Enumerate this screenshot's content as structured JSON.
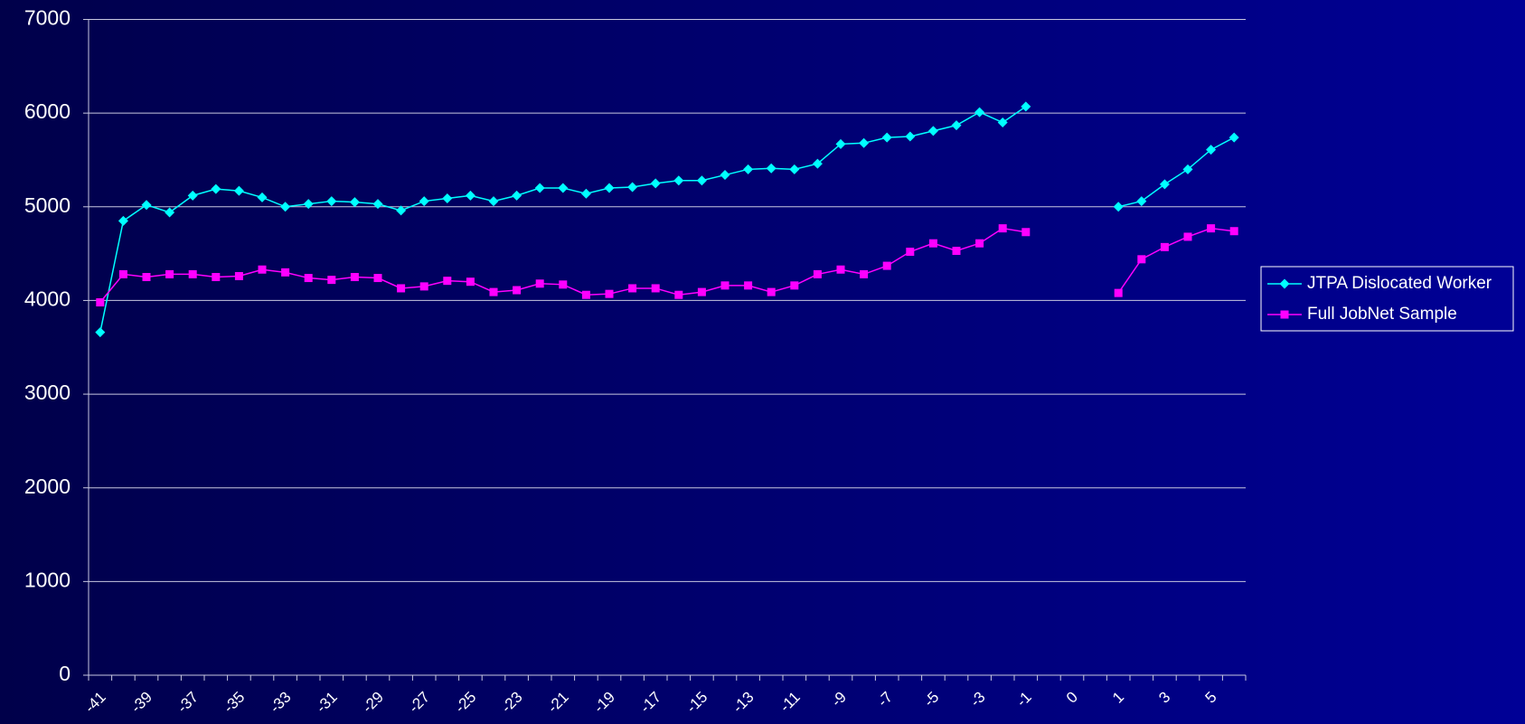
{
  "chart_data": {
    "type": "line",
    "categories": [
      "-41",
      null,
      "-39",
      null,
      "-37",
      null,
      "-35",
      null,
      "-33",
      null,
      "-31",
      null,
      "-29",
      null,
      "-27",
      null,
      "-25",
      null,
      "-23",
      null,
      "-21",
      null,
      "-19",
      null,
      "-17",
      null,
      "-15",
      null,
      "-13",
      null,
      "-11",
      null,
      "-9",
      null,
      "-7",
      null,
      "-5",
      null,
      "-3",
      null,
      "-1",
      null,
      "0",
      null,
      "1",
      null,
      "3",
      null,
      "5",
      null
    ],
    "series": [
      {
        "name": "JTPA Dislocated Worker",
        "color": "#00ffff",
        "marker": "diamond",
        "values": [
          3660,
          4850,
          5020,
          4940,
          5120,
          5190,
          5170,
          5100,
          5000,
          5030,
          5060,
          5050,
          5030,
          4960,
          5060,
          5090,
          5120,
          5060,
          5120,
          5200,
          5200,
          5140,
          5200,
          5210,
          5250,
          5280,
          5280,
          5340,
          5400,
          5410,
          5400,
          5460,
          5670,
          5680,
          5740,
          5750,
          5810,
          5870,
          6010,
          5900,
          6070,
          null,
          null,
          null,
          5000,
          5060,
          5240,
          5400,
          5610,
          5740
        ]
      },
      {
        "name": "Full JobNet Sample",
        "color": "#ff00ff",
        "marker": "square",
        "values": [
          3980,
          4280,
          4250,
          4280,
          4280,
          4250,
          4260,
          4330,
          4300,
          4240,
          4220,
          4250,
          4240,
          4130,
          4150,
          4210,
          4200,
          4090,
          4110,
          4180,
          4170,
          4060,
          4070,
          4130,
          4130,
          4060,
          4090,
          4160,
          4160,
          4090,
          4160,
          4280,
          4330,
          4280,
          4370,
          4520,
          4610,
          4530,
          4610,
          4770,
          4730,
          null,
          null,
          null,
          4080,
          4440,
          4570,
          4680,
          4770,
          4740
        ]
      }
    ],
    "ylim": [
      0,
      7000
    ],
    "yticks": [
      0,
      1000,
      2000,
      3000,
      4000,
      5000,
      6000,
      7000
    ],
    "grid": true,
    "legend": "right"
  }
}
